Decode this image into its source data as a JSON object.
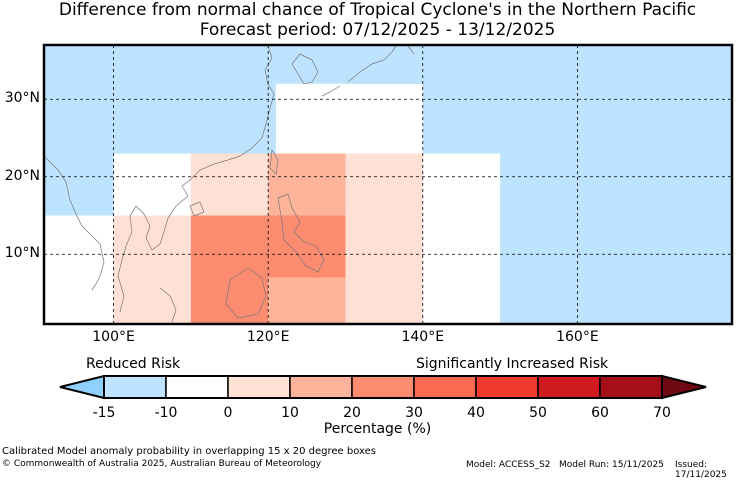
{
  "title": {
    "line1": "Difference from normal chance of Tropical Cyclone's in the Northern Pacific",
    "line2": "Forecast period: 07/12/2025 - 13/12/2025"
  },
  "map": {
    "lon_range": [
      91,
      180
    ],
    "lat_range": [
      1,
      37
    ],
    "lat_ticks": [
      {
        "value": 10,
        "label": "10°N"
      },
      {
        "value": 20,
        "label": "20°N"
      },
      {
        "value": 30,
        "label": "30°N"
      }
    ],
    "lon_ticks": [
      {
        "value": 100,
        "label": "100°E"
      },
      {
        "value": 120,
        "label": "120°E"
      },
      {
        "value": 140,
        "label": "140°E"
      },
      {
        "value": 160,
        "label": "160°E"
      }
    ],
    "grid": true,
    "cells": [
      {
        "lon": [
          91,
          180
        ],
        "lat": [
          1,
          37
        ],
        "value": -15
      },
      {
        "lon": [
          91,
          100
        ],
        "lat": [
          1,
          15
        ],
        "value": -5
      },
      {
        "lon": [
          100,
          110
        ],
        "lat": [
          1,
          15
        ],
        "value": 5
      },
      {
        "lon": [
          91,
          100
        ],
        "lat": [
          15,
          23
        ],
        "value": -12
      },
      {
        "lon": [
          100,
          110
        ],
        "lat": [
          15,
          23
        ],
        "value": -5
      },
      {
        "lon": [
          110,
          120
        ],
        "lat": [
          15,
          23
        ],
        "value": 5
      },
      {
        "lon": [
          110,
          120
        ],
        "lat": [
          1,
          15
        ],
        "value": 25
      },
      {
        "lon": [
          120,
          130
        ],
        "lat": [
          7,
          15
        ],
        "value": 25
      },
      {
        "lon": [
          120,
          130
        ],
        "lat": [
          1,
          7
        ],
        "value": 15
      },
      {
        "lon": [
          120,
          130
        ],
        "lat": [
          15,
          23
        ],
        "value": 15
      },
      {
        "lon": [
          130,
          140
        ],
        "lat": [
          1,
          23
        ],
        "value": 5
      },
      {
        "lon": [
          140,
          150
        ],
        "lat": [
          1,
          23
        ],
        "value": -5
      },
      {
        "lon": [
          140,
          150
        ],
        "lat": [
          23,
          32
        ],
        "value": -12
      },
      {
        "lon": [
          121,
          140
        ],
        "lat": [
          23,
          32
        ],
        "value": -5
      },
      {
        "lon": [
          130,
          140
        ],
        "lat": [
          32,
          37
        ],
        "value": -12
      }
    ]
  },
  "colorbar": {
    "bounds": [
      -15,
      -10,
      0,
      10,
      20,
      30,
      40,
      50,
      60,
      70
    ],
    "tick_labels": [
      "-15",
      "-10",
      "0",
      "10",
      "20",
      "30",
      "40",
      "50",
      "60",
      "70"
    ],
    "colors": [
      "#bee3ff",
      "#ffffff",
      "#ffe0d4",
      "#fdb49a",
      "#fc8c70",
      "#f96a50",
      "#ee3b2e",
      "#cf1a20",
      "#a50f18"
    ],
    "under_color": "#8fd0ff",
    "over_color": "#6e0812",
    "xlabel": "Percentage (%)",
    "left_annotation": "Reduced Risk",
    "right_annotation": "Significantly Increased Risk"
  },
  "footer": {
    "description": "Calibrated Model anomaly probability in overlapping 15 x 20 degree boxes",
    "copyright": "© Commonwealth of Australia 2025, Australian Bureau of Meteorology",
    "model": "Model: ACCESS_S2",
    "model_run": "Model Run: 15/11/2025",
    "issued": "Issued: 17/11/2025"
  }
}
